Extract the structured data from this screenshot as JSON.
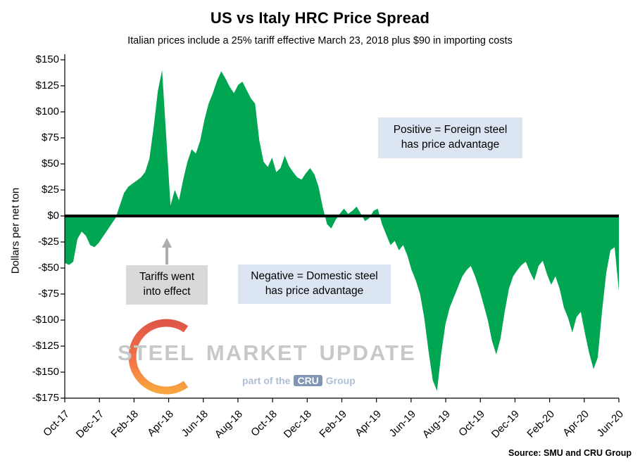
{
  "chart_data": {
    "type": "area",
    "title": "US vs Italy HRC Price Spread",
    "subtitle": "Italian prices include a 25% tariff effective March 23, 2018 plus $90 in importing costs",
    "ylabel": "Dollars per net ton",
    "xlabel": "",
    "ylim": [
      -175,
      150
    ],
    "y_tick_step": 25,
    "baseline": 0,
    "grid": false,
    "legend": "none",
    "x_tick_labels": [
      "Oct-17",
      "Dec-17",
      "Feb-18",
      "Apr-18",
      "Jun-18",
      "Aug-18",
      "Oct-18",
      "Dec-18",
      "Feb-19",
      "Apr-19",
      "Jun-19",
      "Aug-19",
      "Oct-19",
      "Dec-19",
      "Feb-20",
      "Apr-20",
      "Jun-20"
    ],
    "series": [
      {
        "name": "US vs Italy HRC price spread ($ per net ton)",
        "values": [
          -45,
          -47,
          -44,
          -22,
          -15,
          -19,
          -28,
          -30,
          -26,
          -20,
          -14,
          -8,
          -2,
          10,
          22,
          28,
          31,
          34,
          37,
          42,
          55,
          85,
          120,
          140,
          75,
          10,
          25,
          15,
          35,
          52,
          64,
          60,
          72,
          92,
          108,
          118,
          130,
          139,
          132,
          124,
          118,
          126,
          129,
          121,
          113,
          108,
          72,
          52,
          47,
          56,
          42,
          46,
          58,
          48,
          42,
          37,
          35,
          41,
          46,
          40,
          28,
          8,
          -8,
          -12,
          -4,
          2,
          7,
          2,
          5,
          9,
          2,
          -5,
          -2,
          5,
          7,
          -8,
          -18,
          -28,
          -24,
          -33,
          -28,
          -38,
          -52,
          -62,
          -75,
          -98,
          -130,
          -158,
          -168,
          -132,
          -104,
          -88,
          -78,
          -68,
          -58,
          -52,
          -48,
          -58,
          -70,
          -85,
          -100,
          -120,
          -133,
          -118,
          -92,
          -70,
          -58,
          -52,
          -47,
          -44,
          -54,
          -62,
          -48,
          -43,
          -56,
          -66,
          -58,
          -70,
          -88,
          -98,
          -112,
          -97,
          -92,
          -113,
          -132,
          -147,
          -136,
          -92,
          -55,
          -33,
          -30,
          -72
        ]
      }
    ],
    "annotations": {
      "positive": "Positive = Foreign steel\nhas price advantage",
      "negative": "Negative = Domestic steel\nhas price advantage",
      "tariffs": "Tariffs went\ninto effect"
    }
  },
  "watermark": {
    "word1": "STEEL",
    "word2": "MARKET",
    "word3": "UPDATE",
    "part_of": "part of the",
    "cru": "CRU",
    "group": "Group"
  },
  "source": "Source: SMU and CRU Group",
  "colors": {
    "area": "#00A651",
    "zero_line": "#000000",
    "axis": "#000000",
    "annotation_blue": "#DCE6F2",
    "annotation_gray": "#D9D9D9",
    "arrow": "#ADADAD",
    "watermark_text": "#C6C8CA",
    "watermark_sub": "#AEBFD3",
    "watermark_orange": "#F15A29",
    "cru_badge": "#8096B4"
  }
}
